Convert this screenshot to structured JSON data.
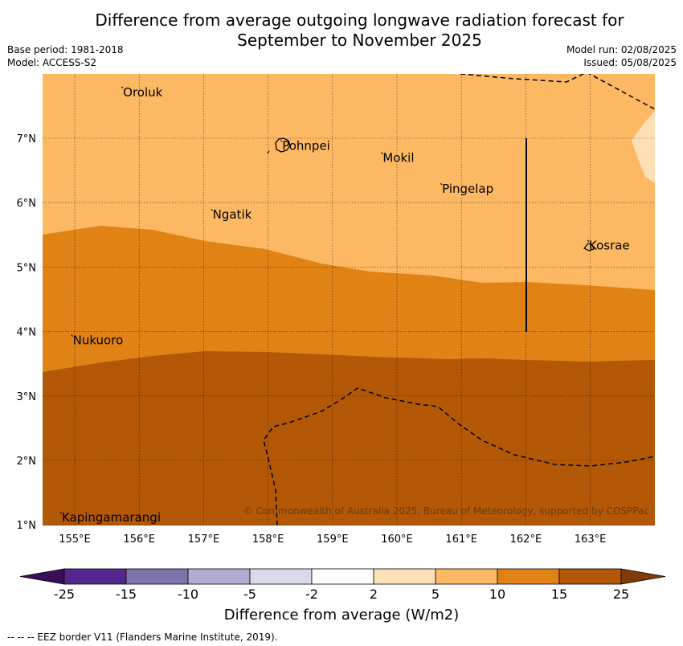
{
  "title_line1": "Difference from average outgoing longwave radiation forecast for",
  "title_line2": "September to November 2025",
  "base_period": "Base period: 1981-2018",
  "model": "Model: ACCESS-S2",
  "model_run": "Model run: 02/08/2025",
  "issued": "Issued: 05/08/2025",
  "copyright": "© Commonwealth of Australia 2025, Bureau of Meteorology, supported by COSPPac",
  "lon_labels": [
    "155°E",
    "156°E",
    "157°E",
    "158°E",
    "159°E",
    "160°E",
    "161°E",
    "162°E",
    "163°E"
  ],
  "lat_labels": [
    "7°N",
    "6°N",
    "5°N",
    "4°N",
    "3°N",
    "2°N",
    "1°N"
  ],
  "places": [
    {
      "name": "Oroluk",
      "lon": 155.75,
      "lat": 7.7
    },
    {
      "name": "Pohnpei",
      "lon": 158.22,
      "lat": 6.87
    },
    {
      "name": "Mokil",
      "lon": 159.78,
      "lat": 6.68
    },
    {
      "name": "Pingelap",
      "lon": 160.7,
      "lat": 6.2
    },
    {
      "name": "Ngatik",
      "lon": 157.14,
      "lat": 5.8
    },
    {
      "name": "Kosrae",
      "lon": 162.98,
      "lat": 5.32
    },
    {
      "name": "Nukuoro",
      "lon": 154.97,
      "lat": 3.85
    },
    {
      "name": "Kapingamarangi",
      "lon": 154.8,
      "lat": 1.1
    }
  ],
  "colorbar": {
    "labels": [
      "-25",
      "-15",
      "-10",
      "-5",
      "-2",
      "2",
      "5",
      "10",
      "15",
      "25"
    ],
    "colors": [
      "#3b0f57",
      "#54278f",
      "#8073ac",
      "#b2abd2",
      "#d8daeb",
      "#ffffff",
      "#fee0b6",
      "#fdb863",
      "#e08214",
      "#b35806",
      "#7f3b08"
    ],
    "title": "Difference from average (W/m2)"
  },
  "footnote": "--  --  -- EEZ border V11 (Flanders Marine Institute, 2019)."
}
